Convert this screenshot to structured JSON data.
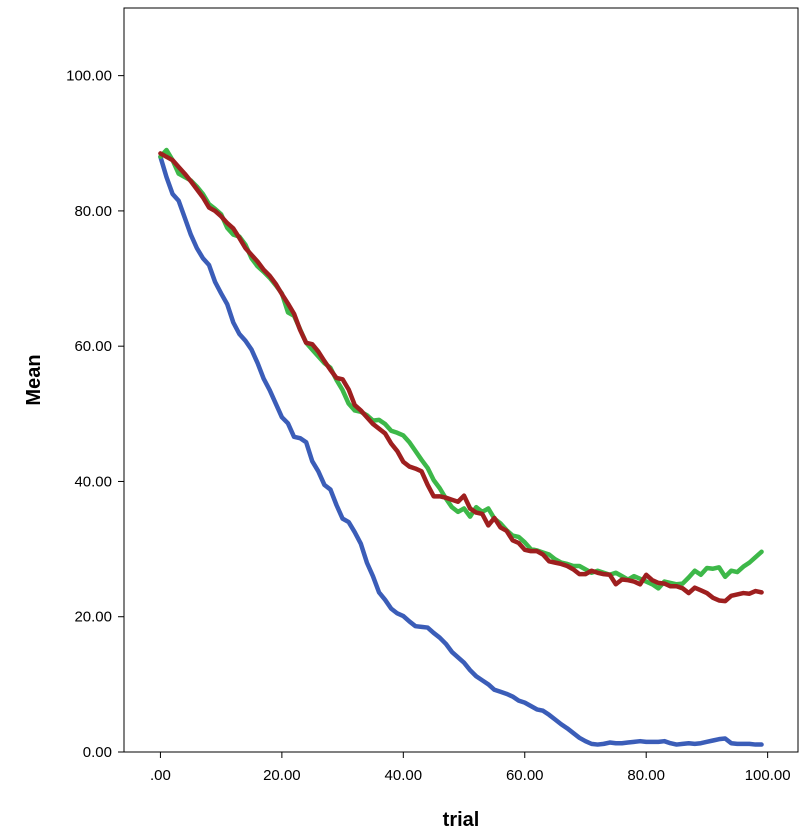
{
  "chart_data": {
    "type": "line",
    "title": "",
    "xlabel": "trial",
    "ylabel": "Mean",
    "xlim": [
      -6,
      105
    ],
    "ylim": [
      0,
      110
    ],
    "grid": false,
    "legend": "none",
    "x_ticks": [
      {
        "value": 0,
        "label": ".00"
      },
      {
        "value": 20,
        "label": "20.00"
      },
      {
        "value": 40,
        "label": "40.00"
      },
      {
        "value": 60,
        "label": "60.00"
      },
      {
        "value": 80,
        "label": "80.00"
      },
      {
        "value": 100,
        "label": "100.00"
      }
    ],
    "y_ticks": [
      {
        "value": 0,
        "label": "0.00"
      },
      {
        "value": 20,
        "label": "20.00"
      },
      {
        "value": 40,
        "label": "40.00"
      },
      {
        "value": 60,
        "label": "60.00"
      },
      {
        "value": 80,
        "label": "80.00"
      },
      {
        "value": 100,
        "label": "100.00"
      }
    ],
    "series": [
      {
        "color": "#3b5db8",
        "points": [
          [
            0,
            88
          ],
          [
            1,
            85
          ],
          [
            2,
            82.5
          ],
          [
            3,
            81.5
          ],
          [
            4,
            79
          ],
          [
            5,
            76.5
          ],
          [
            6,
            74.5
          ],
          [
            7,
            73
          ],
          [
            8,
            72
          ],
          [
            9,
            69.5
          ],
          [
            10,
            67.8
          ],
          [
            11,
            66.2
          ],
          [
            12,
            63.5
          ],
          [
            13,
            61.8
          ],
          [
            14,
            60.8
          ],
          [
            15,
            59.5
          ],
          [
            16,
            57.5
          ],
          [
            17,
            55.2
          ],
          [
            18,
            53.5
          ],
          [
            19,
            51.5
          ],
          [
            20,
            49.5
          ],
          [
            21,
            48.6
          ],
          [
            22,
            46.6
          ],
          [
            23,
            46.4
          ],
          [
            24,
            45.8
          ],
          [
            25,
            43
          ],
          [
            26,
            41.5
          ],
          [
            27,
            39.5
          ],
          [
            28,
            38.8
          ],
          [
            29,
            36.5
          ],
          [
            30,
            34.5
          ],
          [
            31,
            34
          ],
          [
            32,
            32.5
          ],
          [
            33,
            30.8
          ],
          [
            34,
            28
          ],
          [
            35,
            26
          ],
          [
            36,
            23.6
          ],
          [
            37,
            22.5
          ],
          [
            38,
            21.2
          ],
          [
            39,
            20.5
          ],
          [
            40,
            20.1
          ],
          [
            41,
            19.3
          ],
          [
            42,
            18.6
          ],
          [
            43,
            18.5
          ],
          [
            44,
            18.4
          ],
          [
            45,
            17.6
          ],
          [
            46,
            16.9
          ],
          [
            47,
            16
          ],
          [
            48,
            14.8
          ],
          [
            49,
            14
          ],
          [
            50,
            13.2
          ],
          [
            51,
            12.1
          ],
          [
            52,
            11.2
          ],
          [
            53,
            10.6
          ],
          [
            54,
            10
          ],
          [
            55,
            9.2
          ],
          [
            56,
            8.9
          ],
          [
            57,
            8.6
          ],
          [
            58,
            8.2
          ],
          [
            59,
            7.6
          ],
          [
            60,
            7.3
          ],
          [
            61,
            6.8
          ],
          [
            62,
            6.3
          ],
          [
            63,
            6.1
          ],
          [
            64,
            5.5
          ],
          [
            65,
            4.8
          ],
          [
            66,
            4.1
          ],
          [
            67,
            3.5
          ],
          [
            68,
            2.8
          ],
          [
            69,
            2.1
          ],
          [
            70,
            1.6
          ],
          [
            71,
            1.2
          ],
          [
            72,
            1.1
          ],
          [
            73,
            1.2
          ],
          [
            74,
            1.4
          ],
          [
            75,
            1.3
          ],
          [
            76,
            1.3
          ],
          [
            77,
            1.4
          ],
          [
            78,
            1.5
          ],
          [
            79,
            1.6
          ],
          [
            80,
            1.5
          ],
          [
            81,
            1.5
          ],
          [
            82,
            1.5
          ],
          [
            83,
            1.6
          ],
          [
            84,
            1.3
          ],
          [
            85,
            1.1
          ],
          [
            86,
            1.2
          ],
          [
            87,
            1.3
          ],
          [
            88,
            1.2
          ],
          [
            89,
            1.3
          ],
          [
            90,
            1.5
          ],
          [
            91,
            1.7
          ],
          [
            92,
            1.9
          ],
          [
            93,
            2
          ],
          [
            94,
            1.3
          ],
          [
            95,
            1.2
          ],
          [
            96,
            1.2
          ],
          [
            97,
            1.2
          ],
          [
            98,
            1.1
          ],
          [
            99,
            1.1
          ]
        ]
      },
      {
        "color": "#3db849",
        "points": [
          [
            0,
            88
          ],
          [
            1,
            89
          ],
          [
            2,
            87.5
          ],
          [
            3,
            85.5
          ],
          [
            4,
            85
          ],
          [
            5,
            84.5
          ],
          [
            6,
            83.6
          ],
          [
            7,
            82.5
          ],
          [
            8,
            81
          ],
          [
            9,
            80.3
          ],
          [
            10,
            79.5
          ],
          [
            11,
            77.5
          ],
          [
            12,
            76.5
          ],
          [
            13,
            76.2
          ],
          [
            14,
            75
          ],
          [
            15,
            73
          ],
          [
            16,
            71.8
          ],
          [
            17,
            71
          ],
          [
            18,
            70.1
          ],
          [
            19,
            69
          ],
          [
            20,
            67.8
          ],
          [
            21,
            65
          ],
          [
            22,
            64.5
          ],
          [
            23,
            62.5
          ],
          [
            24,
            60.5
          ],
          [
            25,
            59.5
          ],
          [
            26,
            58.5
          ],
          [
            27,
            57.5
          ],
          [
            28,
            56.8
          ],
          [
            29,
            55
          ],
          [
            30,
            53.5
          ],
          [
            31,
            51.5
          ],
          [
            32,
            50.5
          ],
          [
            33,
            50.3
          ],
          [
            34,
            49.8
          ],
          [
            35,
            49
          ],
          [
            36,
            49.1
          ],
          [
            37,
            48.5
          ],
          [
            38,
            47.5
          ],
          [
            39,
            47.2
          ],
          [
            40,
            46.8
          ],
          [
            41,
            45.8
          ],
          [
            42,
            44.5
          ],
          [
            43,
            43.2
          ],
          [
            44,
            42
          ],
          [
            45,
            40.2
          ],
          [
            46,
            39
          ],
          [
            47,
            37.5
          ],
          [
            48,
            36.2
          ],
          [
            49,
            35.5
          ],
          [
            50,
            36
          ],
          [
            51,
            34.8
          ],
          [
            52,
            36.2
          ],
          [
            53,
            35.5
          ],
          [
            54,
            36
          ],
          [
            55,
            34.5
          ],
          [
            56,
            33.8
          ],
          [
            57,
            32.8
          ],
          [
            58,
            32
          ],
          [
            59,
            31.8
          ],
          [
            60,
            31
          ],
          [
            61,
            30
          ],
          [
            62,
            29.8
          ],
          [
            63,
            29.5
          ],
          [
            64,
            29.2
          ],
          [
            65,
            28.5
          ],
          [
            66,
            28
          ],
          [
            67,
            27.8
          ],
          [
            68,
            27.5
          ],
          [
            69,
            27.5
          ],
          [
            70,
            27
          ],
          [
            71,
            26.5
          ],
          [
            72,
            26.8
          ],
          [
            73,
            26.5
          ],
          [
            74,
            26.2
          ],
          [
            75,
            26.5
          ],
          [
            76,
            26
          ],
          [
            77,
            25.5
          ],
          [
            78,
            26
          ],
          [
            79,
            25.6
          ],
          [
            80,
            25.2
          ],
          [
            81,
            24.8
          ],
          [
            82,
            24.2
          ],
          [
            83,
            25.2
          ],
          [
            84,
            25
          ],
          [
            85,
            24.8
          ],
          [
            86,
            24.9
          ],
          [
            87,
            25.8
          ],
          [
            88,
            26.8
          ],
          [
            89,
            26.2
          ],
          [
            90,
            27.2
          ],
          [
            91,
            27.1
          ],
          [
            92,
            27.3
          ],
          [
            93,
            25.9
          ],
          [
            94,
            26.8
          ],
          [
            95,
            26.6
          ],
          [
            96,
            27.4
          ],
          [
            97,
            28
          ],
          [
            98,
            28.8
          ],
          [
            99,
            29.6
          ]
        ]
      },
      {
        "color": "#9e1f1f",
        "points": [
          [
            0,
            88.5
          ],
          [
            1,
            88
          ],
          [
            2,
            87.5
          ],
          [
            3,
            86.5
          ],
          [
            4,
            85.5
          ],
          [
            5,
            84.4
          ],
          [
            6,
            83.2
          ],
          [
            7,
            82
          ],
          [
            8,
            80.5
          ],
          [
            9,
            80
          ],
          [
            10,
            79.2
          ],
          [
            11,
            78.2
          ],
          [
            12,
            77.4
          ],
          [
            13,
            76
          ],
          [
            14,
            74.5
          ],
          [
            15,
            73.5
          ],
          [
            16,
            72.5
          ],
          [
            17,
            71.3
          ],
          [
            18,
            70.4
          ],
          [
            19,
            69.2
          ],
          [
            20,
            67.7
          ],
          [
            21,
            66.3
          ],
          [
            22,
            64.8
          ],
          [
            23,
            62.4
          ],
          [
            24,
            60.5
          ],
          [
            25,
            60.3
          ],
          [
            26,
            59.2
          ],
          [
            27,
            57.8
          ],
          [
            28,
            56.5
          ],
          [
            29,
            55.3
          ],
          [
            30,
            55.1
          ],
          [
            31,
            53.6
          ],
          [
            32,
            51.3
          ],
          [
            33,
            50.5
          ],
          [
            34,
            49.5
          ],
          [
            35,
            48.5
          ],
          [
            36,
            47.8
          ],
          [
            37,
            47.1
          ],
          [
            38,
            45.6
          ],
          [
            39,
            44.5
          ],
          [
            40,
            42.9
          ],
          [
            41,
            42.2
          ],
          [
            42,
            41.9
          ],
          [
            43,
            41.5
          ],
          [
            44,
            39.5
          ],
          [
            45,
            37.8
          ],
          [
            46,
            37.8
          ],
          [
            47,
            37.6
          ],
          [
            48,
            37.3
          ],
          [
            49,
            37
          ],
          [
            50,
            37.9
          ],
          [
            51,
            36
          ],
          [
            52,
            35.4
          ],
          [
            53,
            35.2
          ],
          [
            54,
            33.5
          ],
          [
            55,
            34.6
          ],
          [
            56,
            33.2
          ],
          [
            57,
            32.7
          ],
          [
            58,
            31.3
          ],
          [
            59,
            30.9
          ],
          [
            60,
            29.9
          ],
          [
            61,
            29.7
          ],
          [
            62,
            29.7
          ],
          [
            63,
            29.2
          ],
          [
            64,
            28.2
          ],
          [
            65,
            28
          ],
          [
            66,
            27.8
          ],
          [
            67,
            27.5
          ],
          [
            68,
            27
          ],
          [
            69,
            26.3
          ],
          [
            70,
            26.3
          ],
          [
            71,
            26.8
          ],
          [
            72,
            26.5
          ],
          [
            73,
            26.3
          ],
          [
            74,
            26.2
          ],
          [
            75,
            24.8
          ],
          [
            76,
            25.5
          ],
          [
            77,
            25.4
          ],
          [
            78,
            25.2
          ],
          [
            79,
            24.8
          ],
          [
            80,
            26.2
          ],
          [
            81,
            25.4
          ],
          [
            82,
            25
          ],
          [
            83,
            24.9
          ],
          [
            84,
            24.5
          ],
          [
            85,
            24.5
          ],
          [
            86,
            24.2
          ],
          [
            87,
            23.5
          ],
          [
            88,
            24.3
          ],
          [
            89,
            23.9
          ],
          [
            90,
            23.5
          ],
          [
            91,
            22.8
          ],
          [
            92,
            22.4
          ],
          [
            93,
            22.3
          ],
          [
            94,
            23.1
          ],
          [
            95,
            23.3
          ],
          [
            96,
            23.5
          ],
          [
            97,
            23.4
          ],
          [
            98,
            23.8
          ],
          [
            99,
            23.6
          ]
        ]
      }
    ]
  }
}
